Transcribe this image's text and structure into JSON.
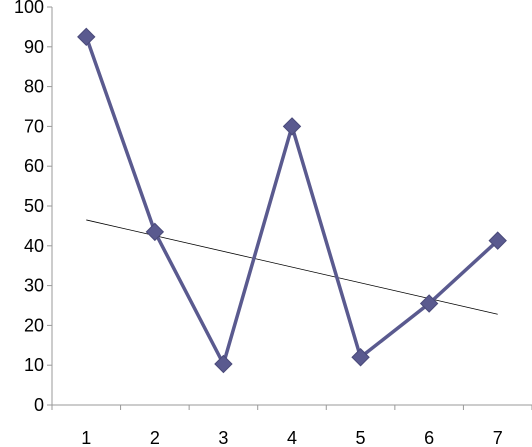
{
  "chart_data": {
    "type": "line",
    "x": [
      1,
      2,
      3,
      4,
      5,
      6,
      7
    ],
    "series": [
      {
        "values": [
          92.5,
          43.5,
          10.3,
          70,
          12,
          25.5,
          41.3
        ]
      }
    ],
    "trendline": {
      "type": "linear",
      "start": [
        1,
        46.5
      ],
      "end": [
        7,
        22.8
      ]
    },
    "ylim": [
      0,
      100
    ],
    "yticks": [
      0,
      10,
      20,
      30,
      40,
      50,
      60,
      70,
      80,
      90,
      100
    ],
    "xticks": [
      1,
      2,
      3,
      4,
      5,
      6,
      7
    ],
    "marker": "diamond",
    "grid": false,
    "legend": "none",
    "colors": {
      "series": "#5a5a8f",
      "trendline": "#000000",
      "axis": "#999999"
    }
  }
}
